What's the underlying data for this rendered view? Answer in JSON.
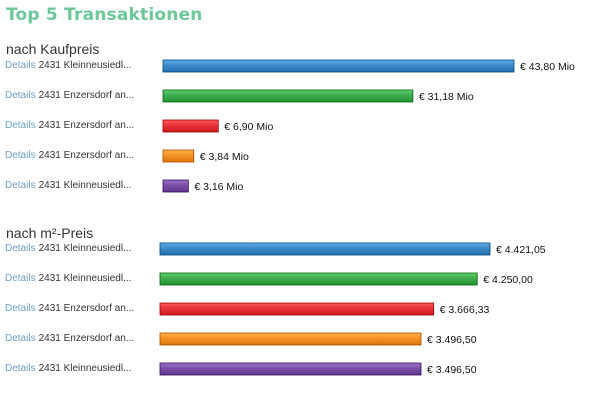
{
  "title": "Top 5 Transaktionen",
  "title_color": "#6cc79a",
  "details_link_color": "#6c9fc8",
  "chart_data": [
    {
      "type": "bar",
      "orientation": "horizontal",
      "title": "nach Kaufpreis",
      "categories": [
        "2431 Kleinneusiedl...",
        "2431 Enzersdorf an...",
        "2431 Enzersdorf an...",
        "2431 Enzersdorf an...",
        "2431 Kleinneusiedl..."
      ],
      "link_label": "Details",
      "values": [
        43.8,
        31.18,
        6.9,
        3.84,
        3.16
      ],
      "value_labels": [
        "€ 43,80 Mio",
        "€ 31,18 Mio",
        "€ 6,90 Mio",
        "€ 3,84 Mio",
        "€ 3,16 Mio"
      ],
      "colors": [
        "#3d8ac8",
        "#3eab4c",
        "#e53339",
        "#f49126",
        "#7a4fa6"
      ],
      "xlim": [
        0,
        43.8
      ],
      "grid": false,
      "legend": "none"
    },
    {
      "type": "bar",
      "orientation": "horizontal",
      "title": "nach m²-Preis",
      "categories": [
        "2431 Kleinneusiedl...",
        "2431 Kleinneusiedl...",
        "2431 Enzersdorf an...",
        "2431 Enzersdorf an...",
        "2431 Kleinneusiedl..."
      ],
      "link_label": "Details",
      "values": [
        4421.05,
        4250.0,
        3666.33,
        3496.5,
        3496.5
      ],
      "value_labels": [
        "€ 4.421,05",
        "€ 4.250,00",
        "€ 3.666,33",
        "€ 3.496,50",
        "€ 3.496,50"
      ],
      "colors": [
        "#3d8ac8",
        "#3eab4c",
        "#e53339",
        "#f49126",
        "#7a4fa6"
      ],
      "xlim": [
        0,
        4421.05
      ],
      "grid": false,
      "legend": "none"
    }
  ]
}
